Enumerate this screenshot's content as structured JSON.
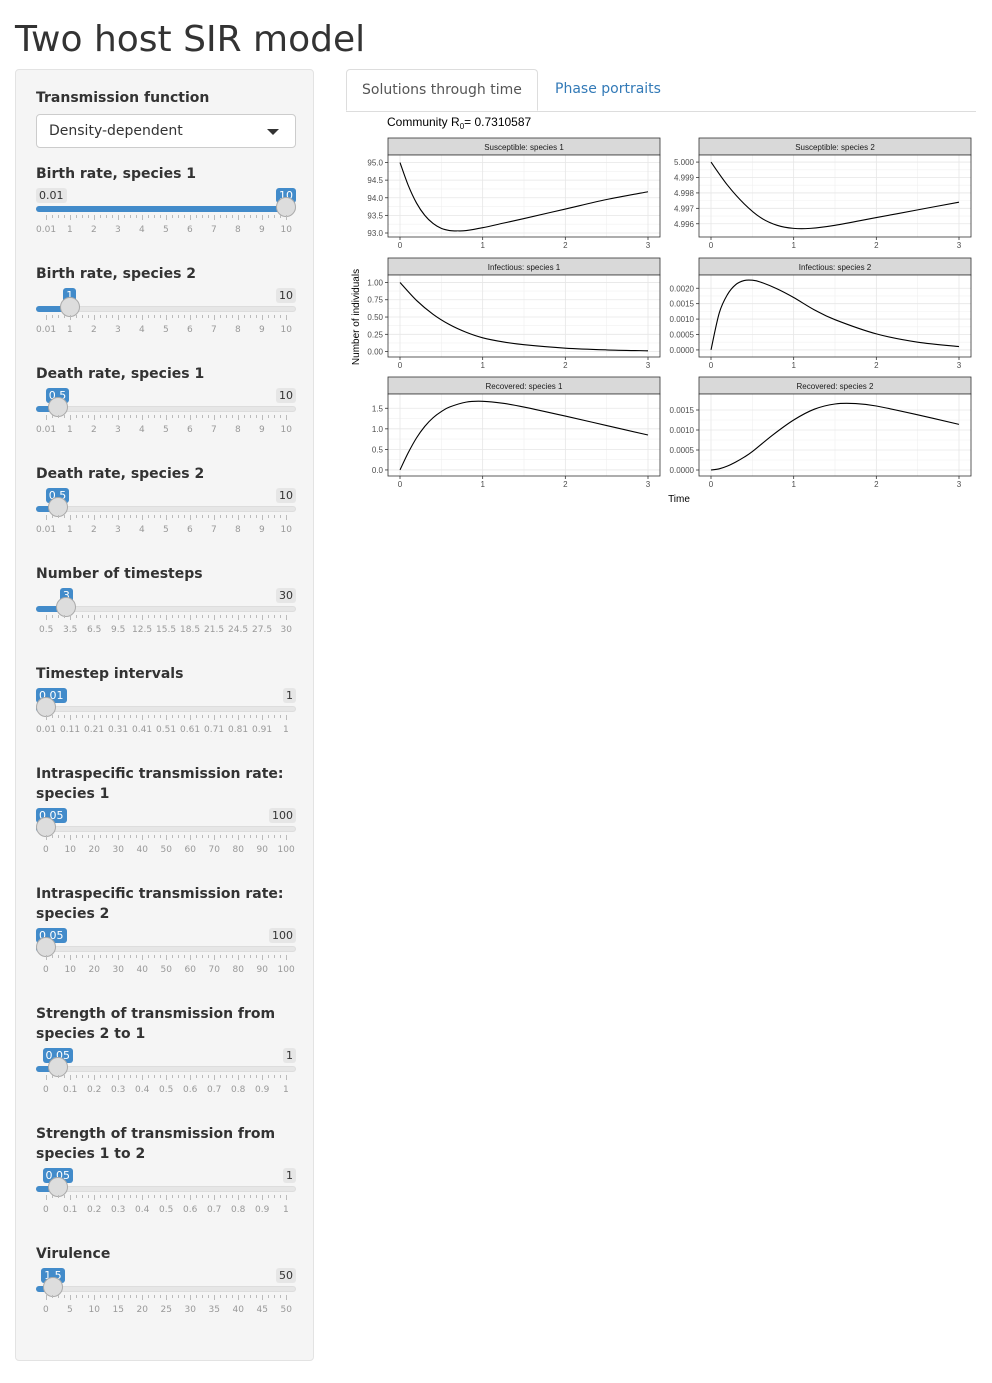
{
  "app_title": "Two host SIR model",
  "sidebar": {
    "transmission_function": {
      "label": "Transmission function",
      "selected": "Density-dependent"
    },
    "sliders": [
      {
        "label": "Birth rate, species 1",
        "min_label": "0.01",
        "max_label": "10",
        "value_label": "10",
        "fraction": 1.0,
        "tick_labels": [
          "0.01",
          "1",
          "2",
          "3",
          "4",
          "5",
          "6",
          "7",
          "8",
          "9",
          "10"
        ]
      },
      {
        "label": "Birth rate, species 2",
        "min_label": "0.01",
        "max_label": "10",
        "value_label": "1",
        "fraction": 0.0991,
        "tick_labels": [
          "0.01",
          "1",
          "2",
          "3",
          "4",
          "5",
          "6",
          "7",
          "8",
          "9",
          "10"
        ]
      },
      {
        "label": "Death rate, species 1",
        "min_label": "0.01",
        "max_label": "10",
        "value_label": "0.5",
        "fraction": 0.049,
        "tick_labels": [
          "0.01",
          "1",
          "2",
          "3",
          "4",
          "5",
          "6",
          "7",
          "8",
          "9",
          "10"
        ]
      },
      {
        "label": "Death rate, species 2",
        "min_label": "0.01",
        "max_label": "10",
        "value_label": "0.5",
        "fraction": 0.049,
        "tick_labels": [
          "0.01",
          "1",
          "2",
          "3",
          "4",
          "5",
          "6",
          "7",
          "8",
          "9",
          "10"
        ]
      },
      {
        "label": "Number of timesteps",
        "min_label": "0.5",
        "max_label": "30",
        "value_label": "3",
        "fraction": 0.0847,
        "tick_labels": [
          "0.5",
          "3.5",
          "6.5",
          "9.5",
          "12.5",
          "15.5",
          "18.5",
          "21.5",
          "24.5",
          "27.5",
          "30"
        ]
      },
      {
        "label": "Timestep intervals",
        "min_label": "0.01",
        "max_label": "1",
        "value_label": "0.01",
        "fraction": 0.0,
        "tick_labels": [
          "0.01",
          "0.11",
          "0.21",
          "0.31",
          "0.41",
          "0.51",
          "0.61",
          "0.71",
          "0.81",
          "0.91",
          "1"
        ]
      },
      {
        "label": "Intraspecific transmission rate: species 1",
        "min_label": "0",
        "max_label": "100",
        "value_label": "0.05",
        "fraction": 0.0005,
        "tick_labels": [
          "0",
          "10",
          "20",
          "30",
          "40",
          "50",
          "60",
          "70",
          "80",
          "90",
          "100"
        ]
      },
      {
        "label": "Intraspecific transmission rate: species 2",
        "min_label": "0",
        "max_label": "100",
        "value_label": "0.05",
        "fraction": 0.0005,
        "tick_labels": [
          "0",
          "10",
          "20",
          "30",
          "40",
          "50",
          "60",
          "70",
          "80",
          "90",
          "100"
        ]
      },
      {
        "label": "Strength of transmission from species 2 to 1",
        "min_label": "0",
        "max_label": "1",
        "value_label": "0.05",
        "fraction": 0.05,
        "tick_labels": [
          "0",
          "0.1",
          "0.2",
          "0.3",
          "0.4",
          "0.5",
          "0.6",
          "0.7",
          "0.8",
          "0.9",
          "1"
        ]
      },
      {
        "label": "Strength of transmission from species 1 to 2",
        "min_label": "0",
        "max_label": "1",
        "value_label": "0.05",
        "fraction": 0.05,
        "tick_labels": [
          "0",
          "0.1",
          "0.2",
          "0.3",
          "0.4",
          "0.5",
          "0.6",
          "0.7",
          "0.8",
          "0.9",
          "1"
        ]
      },
      {
        "label": "Virulence",
        "min_label": "0",
        "max_label": "50",
        "value_label": "1.5",
        "fraction": 0.03,
        "tick_labels": [
          "0",
          "5",
          "10",
          "15",
          "20",
          "25",
          "30",
          "35",
          "40",
          "45",
          "50"
        ]
      }
    ]
  },
  "tabs": [
    {
      "label": "Solutions through time",
      "active": true
    },
    {
      "label": "Phase portraits",
      "active": false
    }
  ],
  "colors": {
    "accent": "#428bca",
    "link": "#337ab7",
    "strip": "#d9d9d9"
  },
  "chart_data": {
    "type": "line",
    "title_prefix": "Community R",
    "title_subscript": "0",
    "title_suffix": "= 0.7310587",
    "xlabel": "Time",
    "ylabel": "Number of individuals",
    "grid": true,
    "panels": [
      {
        "strip": "Susceptible: species 1",
        "xlim": [
          0,
          3
        ],
        "ylim": [
          93.0,
          95.1
        ],
        "yticks": [
          93.0,
          93.5,
          94.0,
          94.5,
          95.0
        ],
        "ytick_labels": [
          "93.0",
          "93.5",
          "94.0",
          "94.5",
          "95.0"
        ],
        "x": [
          0,
          0.1,
          0.2,
          0.3,
          0.4,
          0.5,
          0.6,
          0.7,
          0.8,
          1.0,
          1.25,
          1.5,
          2.0,
          2.5,
          3.0
        ],
        "y": [
          95.0,
          94.35,
          93.85,
          93.5,
          93.27,
          93.13,
          93.07,
          93.06,
          93.07,
          93.15,
          93.28,
          93.41,
          93.68,
          93.95,
          94.17
        ]
      },
      {
        "strip": "Susceptible: species 2",
        "xlim": [
          0,
          3
        ],
        "ylim": [
          4.9954,
          5.0002
        ],
        "yticks": [
          4.996,
          4.997,
          4.998,
          4.999,
          5.0
        ],
        "ytick_labels": [
          "4.996",
          "4.997",
          "4.998",
          "4.999",
          "5.000"
        ],
        "x": [
          0,
          0.2,
          0.4,
          0.6,
          0.8,
          1.0,
          1.2,
          1.5,
          2.0,
          2.5,
          3.0
        ],
        "y": [
          5.0,
          4.9985,
          4.9973,
          4.9964,
          4.9959,
          4.9957,
          4.9957,
          4.9959,
          4.9964,
          4.9969,
          4.9974
        ]
      },
      {
        "strip": "Infectious: species 1",
        "xlim": [
          0,
          3
        ],
        "ylim": [
          -0.02,
          1.05
        ],
        "yticks": [
          0.0,
          0.25,
          0.5,
          0.75,
          1.0
        ],
        "ytick_labels": [
          "0.00",
          "0.25",
          "0.50",
          "0.75",
          "1.00"
        ],
        "x": [
          0,
          0.2,
          0.4,
          0.6,
          0.8,
          1.0,
          1.25,
          1.5,
          2.0,
          2.5,
          3.0
        ],
        "y": [
          1.0,
          0.74,
          0.54,
          0.39,
          0.28,
          0.2,
          0.14,
          0.1,
          0.05,
          0.025,
          0.012
        ]
      },
      {
        "strip": "Infectious: species 2",
        "xlim": [
          0,
          3
        ],
        "ylim": [
          -0.0001,
          0.0023
        ],
        "yticks": [
          0.0,
          0.0005,
          0.001,
          0.0015,
          0.002
        ],
        "ytick_labels": [
          "0.0000",
          "0.0005",
          "0.0010",
          "0.0015",
          "0.0020"
        ],
        "x": [
          0,
          0.1,
          0.2,
          0.3,
          0.4,
          0.5,
          0.6,
          0.8,
          1.0,
          1.25,
          1.5,
          2.0,
          2.5,
          3.0
        ],
        "y": [
          0.0,
          0.0012,
          0.0018,
          0.00212,
          0.00225,
          0.00226,
          0.0022,
          0.00198,
          0.0017,
          0.0013,
          0.00098,
          0.00052,
          0.00025,
          0.00011
        ]
      },
      {
        "strip": "Recovered: species 1",
        "xlim": [
          0,
          3
        ],
        "ylim": [
          -0.05,
          1.75
        ],
        "yticks": [
          0.0,
          0.5,
          1.0,
          1.5
        ],
        "ytick_labels": [
          "0.0",
          "0.5",
          "1.0",
          "1.5"
        ],
        "x": [
          0,
          0.1,
          0.2,
          0.3,
          0.4,
          0.5,
          0.6,
          0.8,
          1.0,
          1.25,
          1.5,
          2.0,
          2.5,
          3.0
        ],
        "y": [
          0.0,
          0.42,
          0.78,
          1.06,
          1.27,
          1.42,
          1.53,
          1.65,
          1.67,
          1.62,
          1.53,
          1.31,
          1.08,
          0.85
        ]
      },
      {
        "strip": "Recovered: species 2",
        "xlim": [
          0,
          3
        ],
        "ylim": [
          -5e-05,
          0.0018
        ],
        "yticks": [
          0.0,
          0.0005,
          0.001,
          0.0015
        ],
        "ytick_labels": [
          "0.0000",
          "0.0005",
          "0.0010",
          "0.0015"
        ],
        "x": [
          0,
          0.1,
          0.2,
          0.3,
          0.4,
          0.5,
          0.75,
          1.0,
          1.25,
          1.5,
          1.75,
          2.0,
          2.5,
          3.0
        ],
        "y": [
          0.0,
          3e-05,
          0.0001,
          0.0002,
          0.00032,
          0.00046,
          0.00088,
          0.00125,
          0.00152,
          0.00165,
          0.00166,
          0.0016,
          0.00138,
          0.00114
        ]
      }
    ],
    "xticks": [
      0,
      1,
      2,
      3
    ],
    "xtick_labels": [
      "0",
      "1",
      "2",
      "3"
    ]
  }
}
